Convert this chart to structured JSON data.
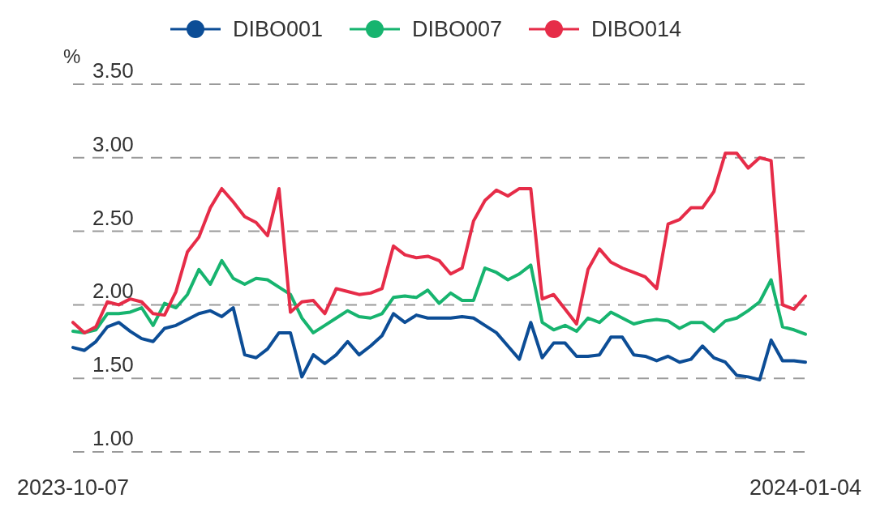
{
  "chart_data": {
    "type": "line",
    "ylabel": "%",
    "categories": [
      "2023-10-07",
      null,
      null,
      null,
      null,
      null,
      null,
      null,
      null,
      null,
      null,
      null,
      null,
      null,
      null,
      null,
      null,
      null,
      null,
      null,
      null,
      null,
      null,
      null,
      null,
      null,
      null,
      null,
      null,
      null,
      null,
      null,
      null,
      null,
      null,
      null,
      null,
      null,
      null,
      null,
      null,
      null,
      null,
      null,
      null,
      null,
      null,
      null,
      null,
      null,
      null,
      null,
      null,
      null,
      null,
      null,
      null,
      null,
      null,
      null,
      null,
      null,
      null,
      null,
      "2024-01-04"
    ],
    "series": [
      {
        "name": "DIBO001",
        "color": "#0c4d96",
        "values": [
          1.71,
          1.69,
          1.75,
          1.85,
          1.88,
          1.82,
          1.77,
          1.75,
          1.84,
          1.86,
          1.9,
          1.94,
          1.96,
          1.92,
          1.98,
          1.66,
          1.64,
          1.7,
          1.81,
          1.81,
          1.51,
          1.66,
          1.6,
          1.66,
          1.75,
          1.66,
          1.72,
          1.79,
          1.94,
          1.88,
          1.93,
          1.91,
          1.91,
          1.91,
          1.92,
          1.91,
          1.86,
          1.81,
          1.72,
          1.63,
          1.88,
          1.64,
          1.74,
          1.74,
          1.65,
          1.65,
          1.66,
          1.78,
          1.78,
          1.66,
          1.65,
          1.62,
          1.65,
          1.61,
          1.63,
          1.72,
          1.64,
          1.61,
          1.52,
          1.51,
          1.49,
          1.76,
          1.62,
          1.62,
          1.61
        ]
      },
      {
        "name": "DIBO007",
        "color": "#17b46f",
        "values": [
          1.82,
          1.81,
          1.83,
          1.94,
          1.94,
          1.95,
          1.98,
          1.86,
          2.01,
          1.98,
          2.07,
          2.24,
          2.14,
          2.3,
          2.18,
          2.14,
          2.18,
          2.17,
          2.12,
          2.07,
          1.91,
          1.81,
          1.86,
          1.91,
          1.96,
          1.92,
          1.91,
          1.94,
          2.05,
          2.06,
          2.05,
          2.1,
          2.01,
          2.08,
          2.03,
          2.03,
          2.25,
          2.22,
          2.17,
          2.21,
          2.27,
          1.88,
          1.83,
          1.86,
          1.82,
          1.91,
          1.88,
          1.95,
          1.91,
          1.87,
          1.89,
          1.9,
          1.89,
          1.84,
          1.88,
          1.88,
          1.82,
          1.89,
          1.91,
          1.96,
          2.02,
          2.17,
          1.85,
          1.83,
          1.8
        ]
      },
      {
        "name": "DIBO014",
        "color": "#e62c48",
        "values": [
          1.88,
          1.81,
          1.85,
          2.02,
          2.0,
          2.04,
          2.02,
          1.94,
          1.93,
          2.09,
          2.36,
          2.46,
          2.66,
          2.79,
          2.7,
          2.6,
          2.56,
          2.47,
          2.79,
          1.95,
          2.02,
          2.03,
          1.94,
          2.11,
          2.09,
          2.07,
          2.08,
          2.11,
          2.4,
          2.34,
          2.32,
          2.33,
          2.3,
          2.21,
          2.25,
          2.57,
          2.71,
          2.78,
          2.74,
          2.79,
          2.79,
          2.04,
          2.07,
          1.97,
          1.87,
          2.24,
          2.38,
          2.29,
          2.25,
          2.22,
          2.19,
          2.11,
          2.55,
          2.58,
          2.66,
          2.66,
          2.77,
          3.03,
          3.03,
          2.93,
          3.0,
          2.98,
          2.0,
          1.97,
          2.06
        ]
      }
    ],
    "ylim": [
      1,
      3.5
    ],
    "yticks": [
      {
        "value": 1,
        "label": "1.00"
      },
      {
        "value": 1.5,
        "label": "1.50"
      },
      {
        "value": 2,
        "label": "2.00"
      },
      {
        "value": 2.5,
        "label": "2.50"
      },
      {
        "value": 3,
        "label": "3.00"
      },
      {
        "value": 3.5,
        "label": "3.50"
      }
    ],
    "grid": "y",
    "legend": "top"
  }
}
